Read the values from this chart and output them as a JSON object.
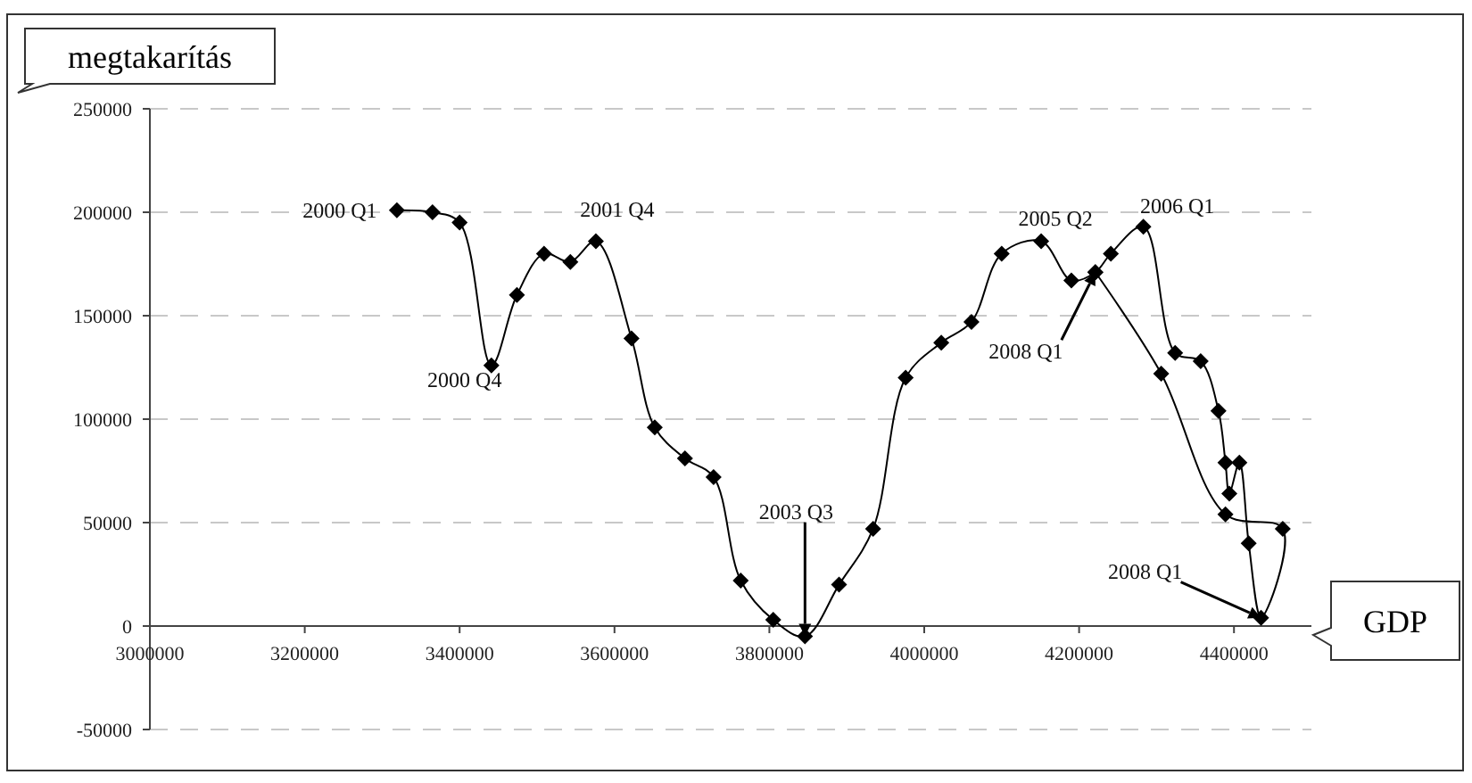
{
  "chart_data": {
    "type": "line",
    "xlabel": "GDP",
    "ylabel": "megtakarítás",
    "x": [
      3319000,
      3365000,
      3400000,
      3441000,
      3474000,
      3509000,
      3543000,
      3576000,
      3622000,
      3652000,
      3691000,
      3728000,
      3763000,
      3805000,
      3846000,
      3890000,
      3934000,
      3976000,
      4022000,
      4061000,
      4100000,
      4151000,
      4190000,
      4221000,
      4241000,
      4283000,
      4324000,
      4357000,
      4380000,
      4389000,
      4394000,
      4407000,
      4419000,
      4435000,
      4463000,
      4389000,
      4306000,
      4221000
    ],
    "series": [
      {
        "color": "#000000",
        "values": [
          201000,
          200000,
          195000,
          126000,
          160000,
          180000,
          176000,
          186000,
          139000,
          96000,
          81000,
          72000,
          22000,
          3000,
          -5000,
          20000,
          47000,
          120000,
          137000,
          147000,
          180000,
          186000,
          167000,
          171000,
          180000,
          193000,
          132000,
          128000,
          104000,
          79000,
          64000,
          79000,
          40000,
          4000,
          47000,
          54000,
          122000,
          171000
        ]
      }
    ],
    "xlim": [
      3000000,
      4500000
    ],
    "xticks": [
      3000000,
      3200000,
      3400000,
      3600000,
      3800000,
      4000000,
      4200000,
      4400000
    ],
    "ylim": [
      -50000,
      250000
    ],
    "yticks": [
      -50000,
      0,
      50000,
      100000,
      150000,
      200000,
      250000
    ],
    "grid": "y",
    "marker": "diamond",
    "line_style": "solid",
    "annotations": [
      {
        "text": "2000 Q1",
        "x": 3319000,
        "y": 201000
      },
      {
        "text": "2000 Q4",
        "x": 3441000,
        "y": 126000
      },
      {
        "text": "2001 Q4",
        "x": 3576000,
        "y": 186000
      },
      {
        "text": "2003 Q3",
        "x": 3846000,
        "y": -5000
      },
      {
        "text": "2005 Q2",
        "x": 4151000,
        "y": 186000
      },
      {
        "text": "2006 Q1",
        "x": 4283000,
        "y": 193000
      },
      {
        "text": "2008 Q1",
        "x": 4221000,
        "y": 171000
      },
      {
        "text": "2008 Q1",
        "x": 4435000,
        "y": 4000
      }
    ]
  }
}
